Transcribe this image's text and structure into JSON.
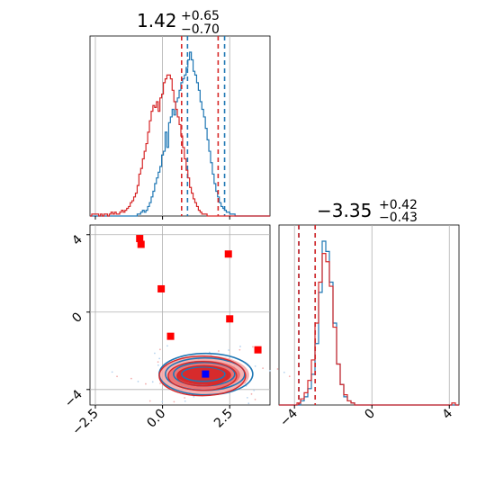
{
  "chart_data": {
    "type": "corner",
    "parameters": [
      {
        "title": {
          "median": "1.42",
          "upper": "+0.65",
          "lower": "−0.70"
        }
      },
      {
        "title": {
          "median": "−3.35",
          "upper": "+0.42",
          "lower": "−0.43"
        }
      }
    ],
    "param1_axis": {
      "range": [
        -2.7,
        4.0
      ],
      "ticks": [
        -2.5,
        0.0,
        2.5
      ],
      "tick_labels": [
        "−2.5",
        "0.0",
        "2.5"
      ]
    },
    "param2_axis": {
      "range": [
        -4.8,
        4.5
      ],
      "ticks": [
        -4,
        0,
        4
      ],
      "tick_labels": [
        "−4",
        "0",
        "4"
      ]
    },
    "series": [
      {
        "color": "#1f77b4",
        "quantiles_param1": [
          0.93,
          2.31
        ],
        "quantiles_param2": [
          -3.77,
          -2.93
        ],
        "hist_param1": [
          0,
          0,
          0,
          0,
          0,
          0,
          0,
          0,
          0,
          0,
          0,
          0,
          0,
          0,
          0,
          0,
          0,
          0,
          0,
          0,
          0,
          0,
          0,
          0,
          0,
          0,
          0,
          1,
          1,
          2,
          3,
          2,
          3,
          5,
          7,
          10,
          13,
          17,
          20,
          23,
          26,
          32,
          34,
          44,
          36,
          49,
          52,
          56,
          53,
          60,
          62,
          66,
          70,
          72,
          74,
          78,
          82,
          86,
          82,
          76,
          74,
          70,
          66,
          60,
          56,
          52,
          46,
          40,
          34,
          28,
          22,
          17,
          13,
          10,
          7,
          5,
          4,
          3,
          2,
          2,
          1,
          1,
          1,
          0,
          0,
          0,
          0,
          0,
          0,
          0,
          0,
          0,
          0,
          0,
          0,
          0,
          0,
          0,
          0,
          0,
          0,
          0,
          0
        ],
        "hist_param2": [
          0,
          0,
          0,
          0,
          0,
          0,
          2,
          4,
          8,
          15,
          30,
          55,
          80,
          75,
          60,
          40,
          20,
          10,
          4,
          2,
          1,
          0,
          0,
          0,
          0,
          0,
          0,
          0,
          0,
          0,
          0,
          0,
          0,
          0,
          0,
          0,
          0,
          0,
          0,
          0,
          0,
          0,
          0,
          0,
          0,
          0,
          0,
          0,
          0,
          0
        ]
      },
      {
        "color": "#d62728",
        "quantiles_param1": [
          0.71,
          2.07
        ],
        "quantiles_param2": [
          -3.78,
          -2.93
        ],
        "hist_param1": [
          0,
          1,
          1,
          1,
          1,
          0,
          1,
          0,
          1,
          1,
          0,
          1,
          2,
          1,
          2,
          1,
          1,
          2,
          3,
          2,
          3,
          4,
          5,
          7,
          8,
          10,
          12,
          16,
          22,
          25,
          30,
          34,
          38,
          44,
          50,
          55,
          58,
          57,
          60,
          55,
          62,
          64,
          70,
          72,
          74,
          74,
          72,
          66,
          60,
          56,
          52,
          48,
          42,
          36,
          30,
          24,
          20,
          15,
          12,
          9,
          7,
          5,
          3,
          2,
          1,
          1,
          1,
          0,
          0,
          0,
          0,
          0,
          0,
          0,
          0,
          0,
          0,
          0,
          0,
          0,
          0,
          0,
          0,
          0,
          0,
          0,
          0,
          0,
          0,
          0,
          0,
          0,
          0,
          0,
          0,
          0,
          0,
          0,
          0,
          0,
          0,
          0,
          0
        ],
        "hist_param2": [
          0,
          0,
          0,
          0,
          0,
          1,
          3,
          6,
          12,
          22,
          40,
          60,
          74,
          70,
          58,
          38,
          20,
          10,
          5,
          2,
          1,
          0,
          0,
          0,
          0,
          0,
          0,
          0,
          0,
          0,
          0,
          0,
          0,
          0,
          0,
          0,
          0,
          0,
          0,
          0,
          0,
          0,
          0,
          0,
          0,
          0,
          0,
          0,
          1,
          0
        ]
      }
    ],
    "red_markers": [
      [
        -0.85,
        3.8
      ],
      [
        -0.8,
        3.5
      ],
      [
        -0.05,
        1.2
      ],
      [
        2.45,
        3.0
      ],
      [
        2.5,
        -0.35
      ],
      [
        0.3,
        -1.25
      ],
      [
        3.55,
        -1.95
      ]
    ],
    "blue_marker": [
      1.6,
      -3.2
    ],
    "contour_center": [
      1.55,
      -3.25
    ],
    "grid": true,
    "legend": "none"
  }
}
